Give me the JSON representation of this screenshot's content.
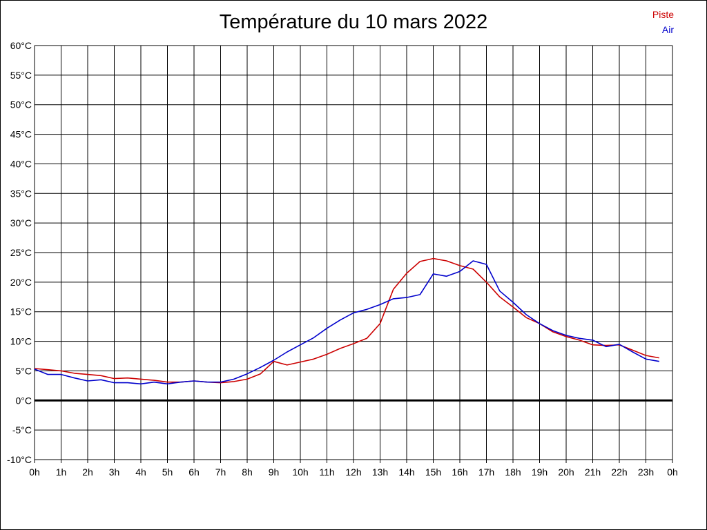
{
  "chart_data": {
    "type": "line",
    "title": "Température du 10 mars 2022",
    "xlabel": "",
    "ylabel": "",
    "ylim": [
      -10,
      60
    ],
    "y_ticks": [
      "60°C",
      "55°C",
      "50°C",
      "45°C",
      "40°C",
      "35°C",
      "30°C",
      "25°C",
      "20°C",
      "15°C",
      "10°C",
      "5°C",
      "0°C",
      "-5°C",
      "-10°C"
    ],
    "y_tick_values": [
      60,
      55,
      50,
      45,
      40,
      35,
      30,
      25,
      20,
      15,
      10,
      5,
      0,
      -5,
      -10
    ],
    "x_ticks": [
      "0h",
      "1h",
      "2h",
      "3h",
      "4h",
      "5h",
      "6h",
      "7h",
      "8h",
      "9h",
      "10h",
      "11h",
      "12h",
      "13h",
      "14h",
      "15h",
      "16h",
      "17h",
      "18h",
      "19h",
      "20h",
      "21h",
      "22h",
      "23h",
      "0h"
    ],
    "xlim": [
      0,
      24
    ],
    "grid": true,
    "legend_position": "top-right",
    "series": [
      {
        "name": "Piste",
        "color": "#cc0000",
        "x": [
          0,
          0.5,
          1,
          1.5,
          2,
          2.5,
          3,
          3.5,
          4,
          4.5,
          5,
          5.5,
          6,
          6.5,
          7,
          7.5,
          8,
          8.5,
          9,
          9.5,
          10,
          10.5,
          11,
          11.5,
          12,
          12.5,
          13,
          13.5,
          14,
          14.5,
          15,
          15.5,
          16,
          16.5,
          17,
          17.5,
          18,
          18.5,
          19,
          19.5,
          20,
          20.5,
          21,
          21.5,
          22,
          22.5,
          23,
          23.5
        ],
        "values": [
          5.4,
          5.2,
          5.0,
          4.6,
          4.4,
          4.2,
          3.7,
          3.8,
          3.6,
          3.4,
          3.1,
          3.1,
          3.3,
          3.1,
          3.0,
          3.2,
          3.6,
          4.5,
          6.6,
          6.0,
          6.5,
          7.0,
          7.8,
          8.8,
          9.6,
          10.5,
          13.0,
          18.8,
          21.5,
          23.5,
          24.0,
          23.6,
          22.8,
          22.2,
          20.0,
          17.5,
          15.8,
          14.0,
          13.0,
          11.6,
          10.8,
          10.2,
          9.4,
          9.3,
          9.4,
          8.5,
          7.6,
          7.2
        ]
      },
      {
        "name": "Air",
        "color": "#0000cc",
        "x": [
          0,
          0.5,
          1,
          1.5,
          2,
          2.5,
          3,
          3.5,
          4,
          4.5,
          5,
          5.5,
          6,
          6.5,
          7,
          7.5,
          8,
          8.5,
          9,
          9.5,
          10,
          10.5,
          11,
          11.5,
          12,
          12.5,
          13,
          13.5,
          14,
          14.5,
          15,
          15.5,
          16,
          16.5,
          17,
          17.5,
          18,
          18.5,
          19,
          19.5,
          20,
          20.5,
          21,
          21.5,
          22,
          22.5,
          23,
          23.5
        ],
        "values": [
          5.3,
          4.4,
          4.4,
          3.8,
          3.3,
          3.5,
          3.0,
          3.0,
          2.8,
          3.1,
          2.8,
          3.1,
          3.3,
          3.1,
          3.1,
          3.6,
          4.5,
          5.6,
          6.8,
          8.2,
          9.4,
          10.6,
          12.2,
          13.6,
          14.8,
          15.4,
          16.2,
          17.2,
          17.4,
          17.9,
          21.4,
          21.0,
          21.8,
          23.6,
          23.0,
          18.5,
          16.6,
          14.5,
          13.0,
          11.8,
          11.0,
          10.5,
          10.2,
          9.1,
          9.5,
          8.2,
          7.0,
          6.6
        ]
      }
    ]
  }
}
